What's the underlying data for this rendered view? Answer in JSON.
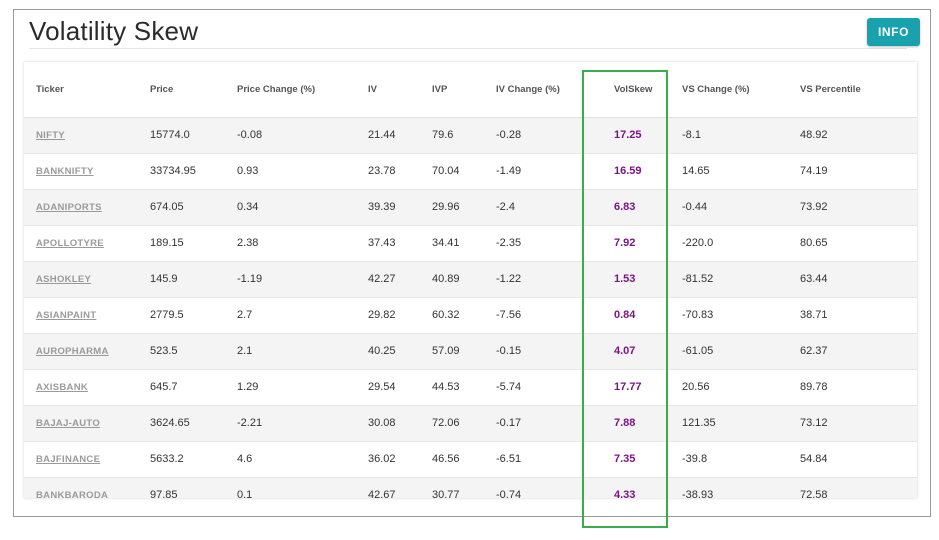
{
  "page": {
    "title": "Volatility Skew",
    "info_label": "INFO"
  },
  "table": {
    "columns": [
      "Ticker",
      "Price",
      "Price Change (%)",
      "IV",
      "IVP",
      "IV Change (%)",
      "VolSkew",
      "VS Change (%)",
      "VS Percentile"
    ],
    "rows": [
      {
        "ticker": "NIFTY",
        "price": "15774.0",
        "price_change": "-0.08",
        "iv": "21.44",
        "ivp": "79.6",
        "iv_change": "-0.28",
        "volskew": "17.25",
        "vs_change": "-8.1",
        "vs_percentile": "48.92"
      },
      {
        "ticker": "BANKNIFTY",
        "price": "33734.95",
        "price_change": "0.93",
        "iv": "23.78",
        "ivp": "70.04",
        "iv_change": "-1.49",
        "volskew": "16.59",
        "vs_change": "14.65",
        "vs_percentile": "74.19"
      },
      {
        "ticker": "ADANIPORTS",
        "price": "674.05",
        "price_change": "0.34",
        "iv": "39.39",
        "ivp": "29.96",
        "iv_change": "-2.4",
        "volskew": "6.83",
        "vs_change": "-0.44",
        "vs_percentile": "73.92"
      },
      {
        "ticker": "APOLLOTYRE",
        "price": "189.15",
        "price_change": "2.38",
        "iv": "37.43",
        "ivp": "34.41",
        "iv_change": "-2.35",
        "volskew": "7.92",
        "vs_change": "-220.0",
        "vs_percentile": "80.65"
      },
      {
        "ticker": "ASHOKLEY",
        "price": "145.9",
        "price_change": "-1.19",
        "iv": "42.27",
        "ivp": "40.89",
        "iv_change": "-1.22",
        "volskew": "1.53",
        "vs_change": "-81.52",
        "vs_percentile": "63.44"
      },
      {
        "ticker": "ASIANPAINT",
        "price": "2779.5",
        "price_change": "2.7",
        "iv": "29.82",
        "ivp": "60.32",
        "iv_change": "-7.56",
        "volskew": "0.84",
        "vs_change": "-70.83",
        "vs_percentile": "38.71"
      },
      {
        "ticker": "AUROPHARMA",
        "price": "523.5",
        "price_change": "2.1",
        "iv": "40.25",
        "ivp": "57.09",
        "iv_change": "-0.15",
        "volskew": "4.07",
        "vs_change": "-61.05",
        "vs_percentile": "62.37"
      },
      {
        "ticker": "AXISBANK",
        "price": "645.7",
        "price_change": "1.29",
        "iv": "29.54",
        "ivp": "44.53",
        "iv_change": "-5.74",
        "volskew": "17.77",
        "vs_change": "20.56",
        "vs_percentile": "89.78"
      },
      {
        "ticker": "BAJAJ-AUTO",
        "price": "3624.65",
        "price_change": "-2.21",
        "iv": "30.08",
        "ivp": "72.06",
        "iv_change": "-0.17",
        "volskew": "7.88",
        "vs_change": "121.35",
        "vs_percentile": "73.12"
      },
      {
        "ticker": "BAJFINANCE",
        "price": "5633.2",
        "price_change": "4.6",
        "iv": "36.02",
        "ivp": "46.56",
        "iv_change": "-6.51",
        "volskew": "7.35",
        "vs_change": "-39.8",
        "vs_percentile": "54.84"
      },
      {
        "ticker": "BANKBARODA",
        "price": "97.85",
        "price_change": "0.1",
        "iv": "42.67",
        "ivp": "30.77",
        "iv_change": "-0.74",
        "volskew": "4.33",
        "vs_change": "-38.93",
        "vs_percentile": "72.58"
      }
    ]
  },
  "colors": {
    "info_button": "#17a2ad",
    "volskew_text": "#7b1585",
    "highlight_border": "#3aad4a",
    "ticker_link": "#9a9a9a"
  }
}
